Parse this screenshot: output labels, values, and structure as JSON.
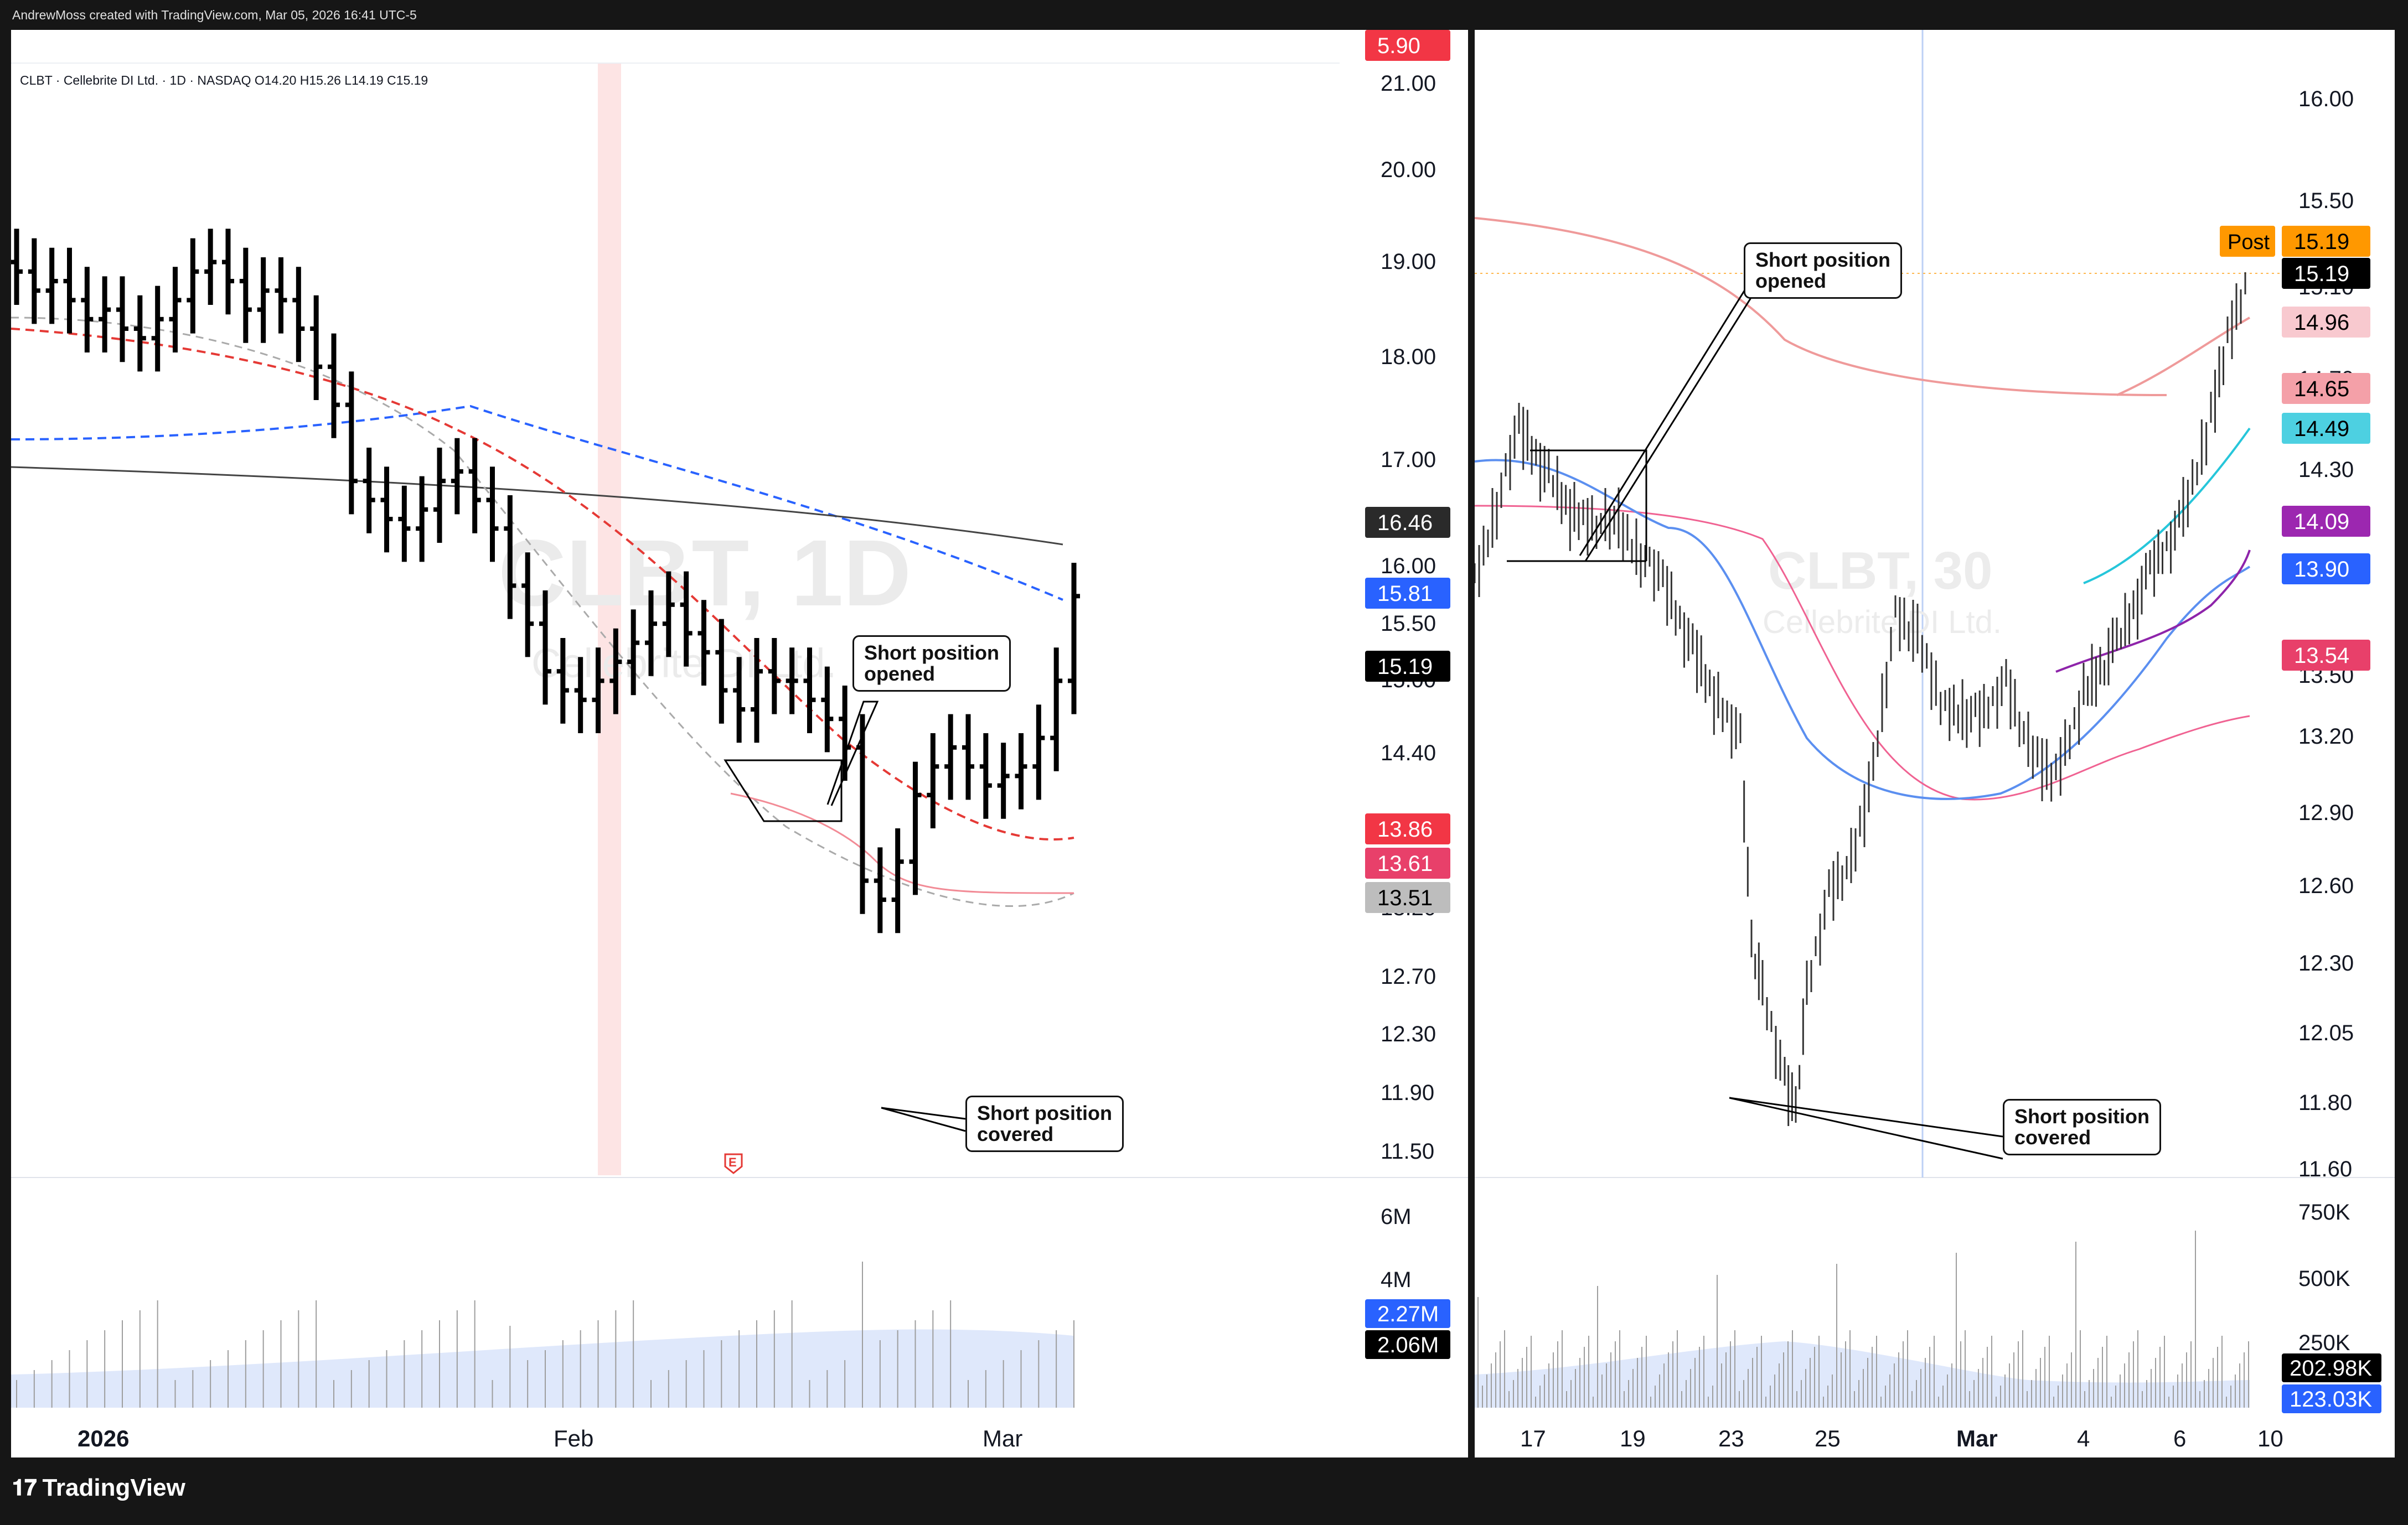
{
  "caption": "AndrewMoss created with TradingView.com, Mar 05, 2026 16:41 UTC-5",
  "footer": {
    "brand": "TradingView",
    "logo_icon": "tradingview-logo-icon"
  },
  "left": {
    "legend": "CLBT · Cellebrite DI Ltd. · 1D · NASDAQ  O14.20  H15.26  L14.19  C15.19",
    "watermark_symbol": "CLBT, 1D",
    "watermark_name": "Cellebrite DI Ltd.",
    "price_axis": [
      "21.00",
      "20.00",
      "19.00",
      "18.00",
      "17.00",
      "16.00",
      "15.50",
      "15.00",
      "14.40",
      "13.20",
      "12.70",
      "12.30",
      "11.90",
      "11.50"
    ],
    "price_badges": [
      {
        "text": "5.90",
        "bg": "#f23645",
        "fg": "#ffffff"
      },
      {
        "text": "16.46",
        "bg": "#2a2a2a",
        "fg": "#ffffff"
      },
      {
        "text": "15.81",
        "bg": "#2962ff",
        "fg": "#ffffff"
      },
      {
        "text": "15.19",
        "bg": "#000000",
        "fg": "#ffffff"
      },
      {
        "text": "13.86",
        "bg": "#f23645",
        "fg": "#ffffff"
      },
      {
        "text": "13.61",
        "bg": "#e8406a",
        "fg": "#ffffff"
      },
      {
        "text": "13.51",
        "bg": "#bdbdbd",
        "fg": "#000000"
      }
    ],
    "volume_axis": [
      "6M",
      "4M"
    ],
    "volume_badges": [
      {
        "text": "2.27M",
        "bg": "#2962ff",
        "fg": "#ffffff"
      },
      {
        "text": "2.06M",
        "bg": "#000000",
        "fg": "#ffffff"
      }
    ],
    "time_axis": [
      "2026",
      "Feb",
      "Mar"
    ],
    "annotation_open": "Short position\nopened",
    "annotation_cover": "Short position\ncovered",
    "earnings_marker": "E"
  },
  "right": {
    "watermark_symbol": "CLBT, 30",
    "watermark_name": "Cellebrite DI Ltd.",
    "price_axis": [
      "16.00",
      "15.50",
      "15.10",
      "14.70",
      "14.30",
      "13.50",
      "13.20",
      "12.90",
      "12.60",
      "12.30",
      "12.05",
      "11.80",
      "11.60"
    ],
    "post_label": "Post",
    "price_badges": [
      {
        "text": "15.19",
        "bg": "#ff9800",
        "fg": "#000000"
      },
      {
        "text": "15.19",
        "bg": "#000000",
        "fg": "#ffffff"
      },
      {
        "text": "14.96",
        "bg": "#f8c9cf",
        "fg": "#000000"
      },
      {
        "text": "14.65",
        "bg": "#f4a0a8",
        "fg": "#000000"
      },
      {
        "text": "14.49",
        "bg": "#4dd0e1",
        "fg": "#000000"
      },
      {
        "text": "14.09",
        "bg": "#9c27b0",
        "fg": "#ffffff"
      },
      {
        "text": "13.90",
        "bg": "#2962ff",
        "fg": "#ffffff"
      },
      {
        "text": "13.54",
        "bg": "#e8406a",
        "fg": "#ffffff"
      }
    ],
    "volume_axis": [
      "750K",
      "500K",
      "250K"
    ],
    "volume_badges": [
      {
        "text": "202.98K",
        "bg": "#000000",
        "fg": "#ffffff"
      },
      {
        "text": "123.03K",
        "bg": "#2962ff",
        "fg": "#ffffff"
      }
    ],
    "time_axis": [
      "17",
      "19",
      "23",
      "25",
      "Mar",
      "4",
      "6",
      "10"
    ],
    "annotation_open": "Short position\nopened",
    "annotation_cover": "Short position\ncovered"
  },
  "chart_data": [
    {
      "type": "ohlc",
      "title": "CLBT · Cellebrite DI Ltd. · 1D · NASDAQ",
      "ylim": [
        11.5,
        21.0
      ],
      "x": [
        "2026",
        "Feb",
        "Mar"
      ],
      "close_last": 15.19,
      "closes": [
        18.6,
        18.4,
        18.5,
        18.3,
        18.1,
        18.2,
        18.0,
        17.9,
        18.1,
        18.3,
        18.6,
        18.7,
        18.5,
        18.2,
        18.4,
        18.3,
        18.0,
        17.6,
        17.2,
        16.4,
        16.2,
        16.0,
        15.9,
        16.1,
        16.4,
        16.5,
        16.2,
        15.9,
        15.3,
        14.9,
        14.4,
        14.2,
        14.1,
        14.3,
        14.5,
        14.7,
        14.9,
        15.1,
        14.8,
        14.6,
        14.2,
        14.0,
        14.4,
        14.3,
        14.3,
        14.1,
        13.9,
        13.6,
        12.2,
        12.0,
        12.4,
        13.1,
        13.4,
        13.6,
        13.4,
        13.2,
        13.3,
        13.4,
        13.7,
        14.3,
        15.19
      ]
    },
    {
      "type": "ohlc",
      "title": "CLBT, 30",
      "ylim": [
        11.6,
        16.0
      ],
      "x": [
        "17",
        "19",
        "23",
        "25",
        "Mar",
        "4",
        "6",
        "10"
      ],
      "close_last": 15.19
    }
  ]
}
